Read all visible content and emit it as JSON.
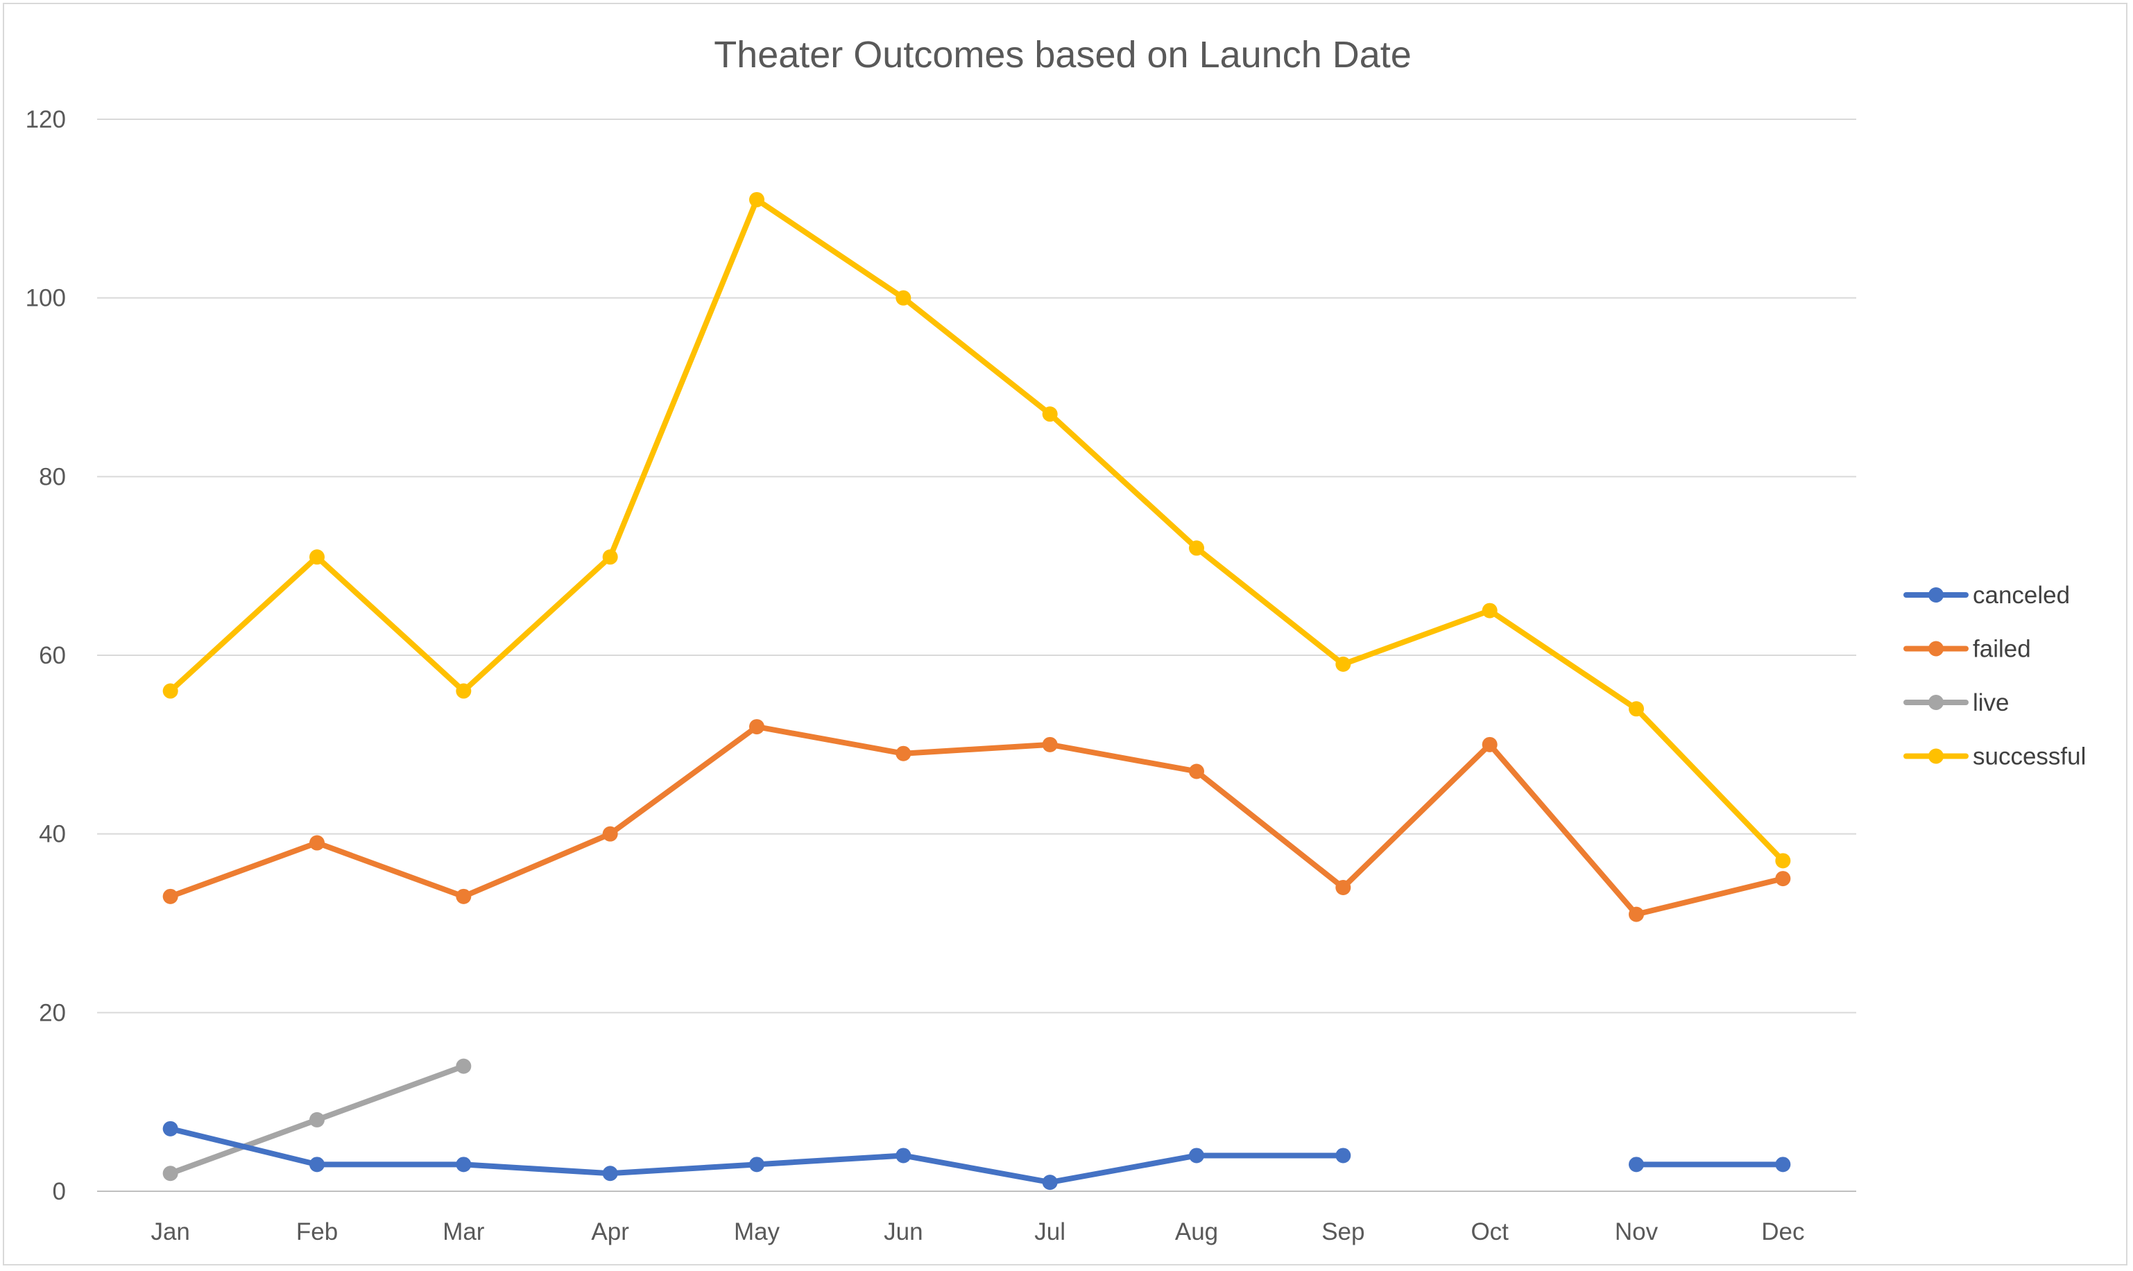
{
  "chart_data": {
    "type": "line",
    "title": "Theater Outcomes based on Launch Date",
    "xlabel": "",
    "ylabel": "",
    "categories": [
      "Jan",
      "Feb",
      "Mar",
      "Apr",
      "May",
      "Jun",
      "Jul",
      "Aug",
      "Sep",
      "Oct",
      "Nov",
      "Dec"
    ],
    "ylim": [
      0,
      120
    ],
    "yticks": [
      "0",
      "20",
      "40",
      "60",
      "80",
      "100",
      "120"
    ],
    "grid": true,
    "legend_position": "right",
    "series": [
      {
        "name": "canceled",
        "color": "#4472C4",
        "values": [
          7,
          3,
          3,
          2,
          3,
          4,
          1,
          4,
          4,
          null,
          3,
          3
        ]
      },
      {
        "name": "failed",
        "color": "#ED7D31",
        "values": [
          33,
          39,
          33,
          40,
          52,
          49,
          50,
          47,
          34,
          50,
          31,
          35
        ]
      },
      {
        "name": "live",
        "color": "#A5A5A5",
        "values": [
          2,
          8,
          14,
          null,
          null,
          null,
          null,
          null,
          null,
          null,
          null,
          null
        ]
      },
      {
        "name": "successful",
        "color": "#FFC000",
        "values": [
          56,
          71,
          56,
          71,
          111,
          100,
          87,
          72,
          59,
          65,
          54,
          37
        ]
      }
    ],
    "draw_order": [
      "successful",
      "failed",
      "live",
      "canceled"
    ]
  }
}
